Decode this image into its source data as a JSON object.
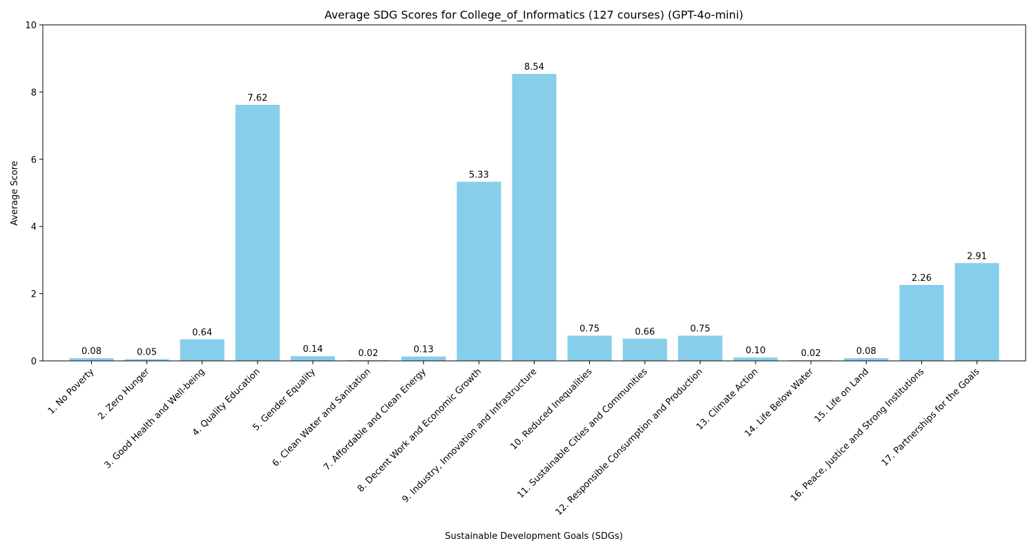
{
  "chart_data": {
    "type": "bar",
    "title": "Average SDG Scores for College_of_Informatics (127 courses) (GPT-4o-mini)",
    "xlabel": "Sustainable Development Goals (SDGs)",
    "ylabel": "Average Score",
    "ylim": [
      0,
      10
    ],
    "yticks": [
      0,
      2,
      4,
      6,
      8,
      10
    ],
    "grid": false,
    "bar_color": "#87ceeb",
    "categories": [
      "1. No Poverty",
      "2. Zero Hunger",
      "3. Good Health and Well-being",
      "4. Quality Education",
      "5. Gender Equality",
      "6. Clean Water and Sanitation",
      "7. Affordable and Clean Energy",
      "8. Decent Work and Economic Growth",
      "9. Industry, Innovation and Infrastructure",
      "10. Reduced Inequalities",
      "11. Sustainable Cities and Communities",
      "12. Responsible Consumption and Production",
      "13. Climate Action",
      "14. Life Below Water",
      "15. Life on Land",
      "16. Peace, Justice and Strong Institutions",
      "17. Partnerships for the Goals"
    ],
    "values": [
      0.08,
      0.05,
      0.64,
      7.62,
      0.14,
      0.02,
      0.13,
      5.33,
      8.54,
      0.75,
      0.66,
      0.75,
      0.1,
      0.02,
      0.08,
      2.26,
      2.91
    ],
    "value_labels": [
      "0.08",
      "0.05",
      "0.64",
      "7.62",
      "0.14",
      "0.02",
      "0.13",
      "5.33",
      "8.54",
      "0.75",
      "0.66",
      "0.75",
      "0.10",
      "0.02",
      "0.08",
      "2.26",
      "2.91"
    ]
  }
}
